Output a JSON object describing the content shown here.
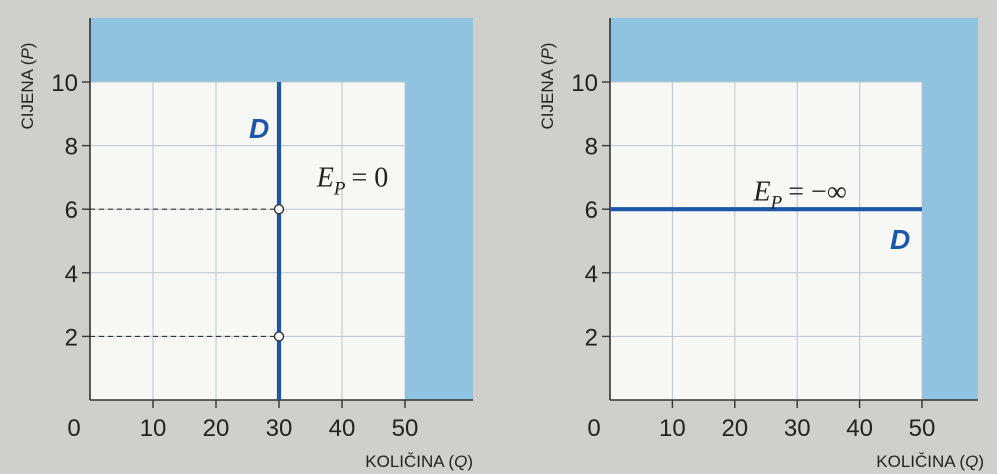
{
  "colors": {
    "background": "#cfcfcb",
    "plot_area": "#f7f7f5",
    "shading": "#8fc3df",
    "grid": "#b9c6cf",
    "axis": "#333333",
    "curve": "#1c56a8",
    "text": "#222222"
  },
  "chart_data": [
    {
      "type": "line",
      "ylabel": "CIJENA (P)",
      "xlabel": "KOLIČINA (Q)",
      "xlim": [
        0,
        50
      ],
      "ylim": [
        0,
        10
      ],
      "x_ticks": [
        0,
        10,
        20,
        30,
        40,
        50
      ],
      "y_ticks": [
        2,
        4,
        6,
        8,
        10
      ],
      "grid": true,
      "shaded_region": "outside 0–50 by 0–10",
      "series": [
        {
          "name": "D",
          "x": [
            30,
            30
          ],
          "y": [
            0,
            10
          ],
          "style": "vertical"
        }
      ],
      "points": [
        {
          "x": 30,
          "y": 6
        },
        {
          "x": 30,
          "y": 2
        }
      ],
      "guides": [
        {
          "from": [
            0,
            6
          ],
          "to": [
            30,
            6
          ]
        },
        {
          "from": [
            0,
            2
          ],
          "to": [
            30,
            2
          ]
        }
      ],
      "annotations": [
        {
          "subject": "E",
          "subscript": "P",
          "relation": "= 0",
          "at": {
            "x": 36,
            "y": 7
          }
        }
      ]
    },
    {
      "type": "line",
      "ylabel": "CIJENA (P)",
      "xlabel": "KOLIČINA (Q)",
      "xlim": [
        0,
        50
      ],
      "ylim": [
        0,
        10
      ],
      "x_ticks": [
        0,
        10,
        20,
        30,
        40,
        50
      ],
      "y_ticks": [
        2,
        4,
        6,
        8,
        10
      ],
      "grid": true,
      "shaded_region": "outside 0–50 by 0–10",
      "series": [
        {
          "name": "D",
          "x": [
            0,
            50
          ],
          "y": [
            6,
            6
          ],
          "style": "horizontal"
        }
      ],
      "points": [],
      "guides": [],
      "annotations": [
        {
          "subject": "E",
          "subscript": "P",
          "relation": "= −∞",
          "at": {
            "x": 23,
            "y": 6.55
          }
        }
      ]
    }
  ]
}
